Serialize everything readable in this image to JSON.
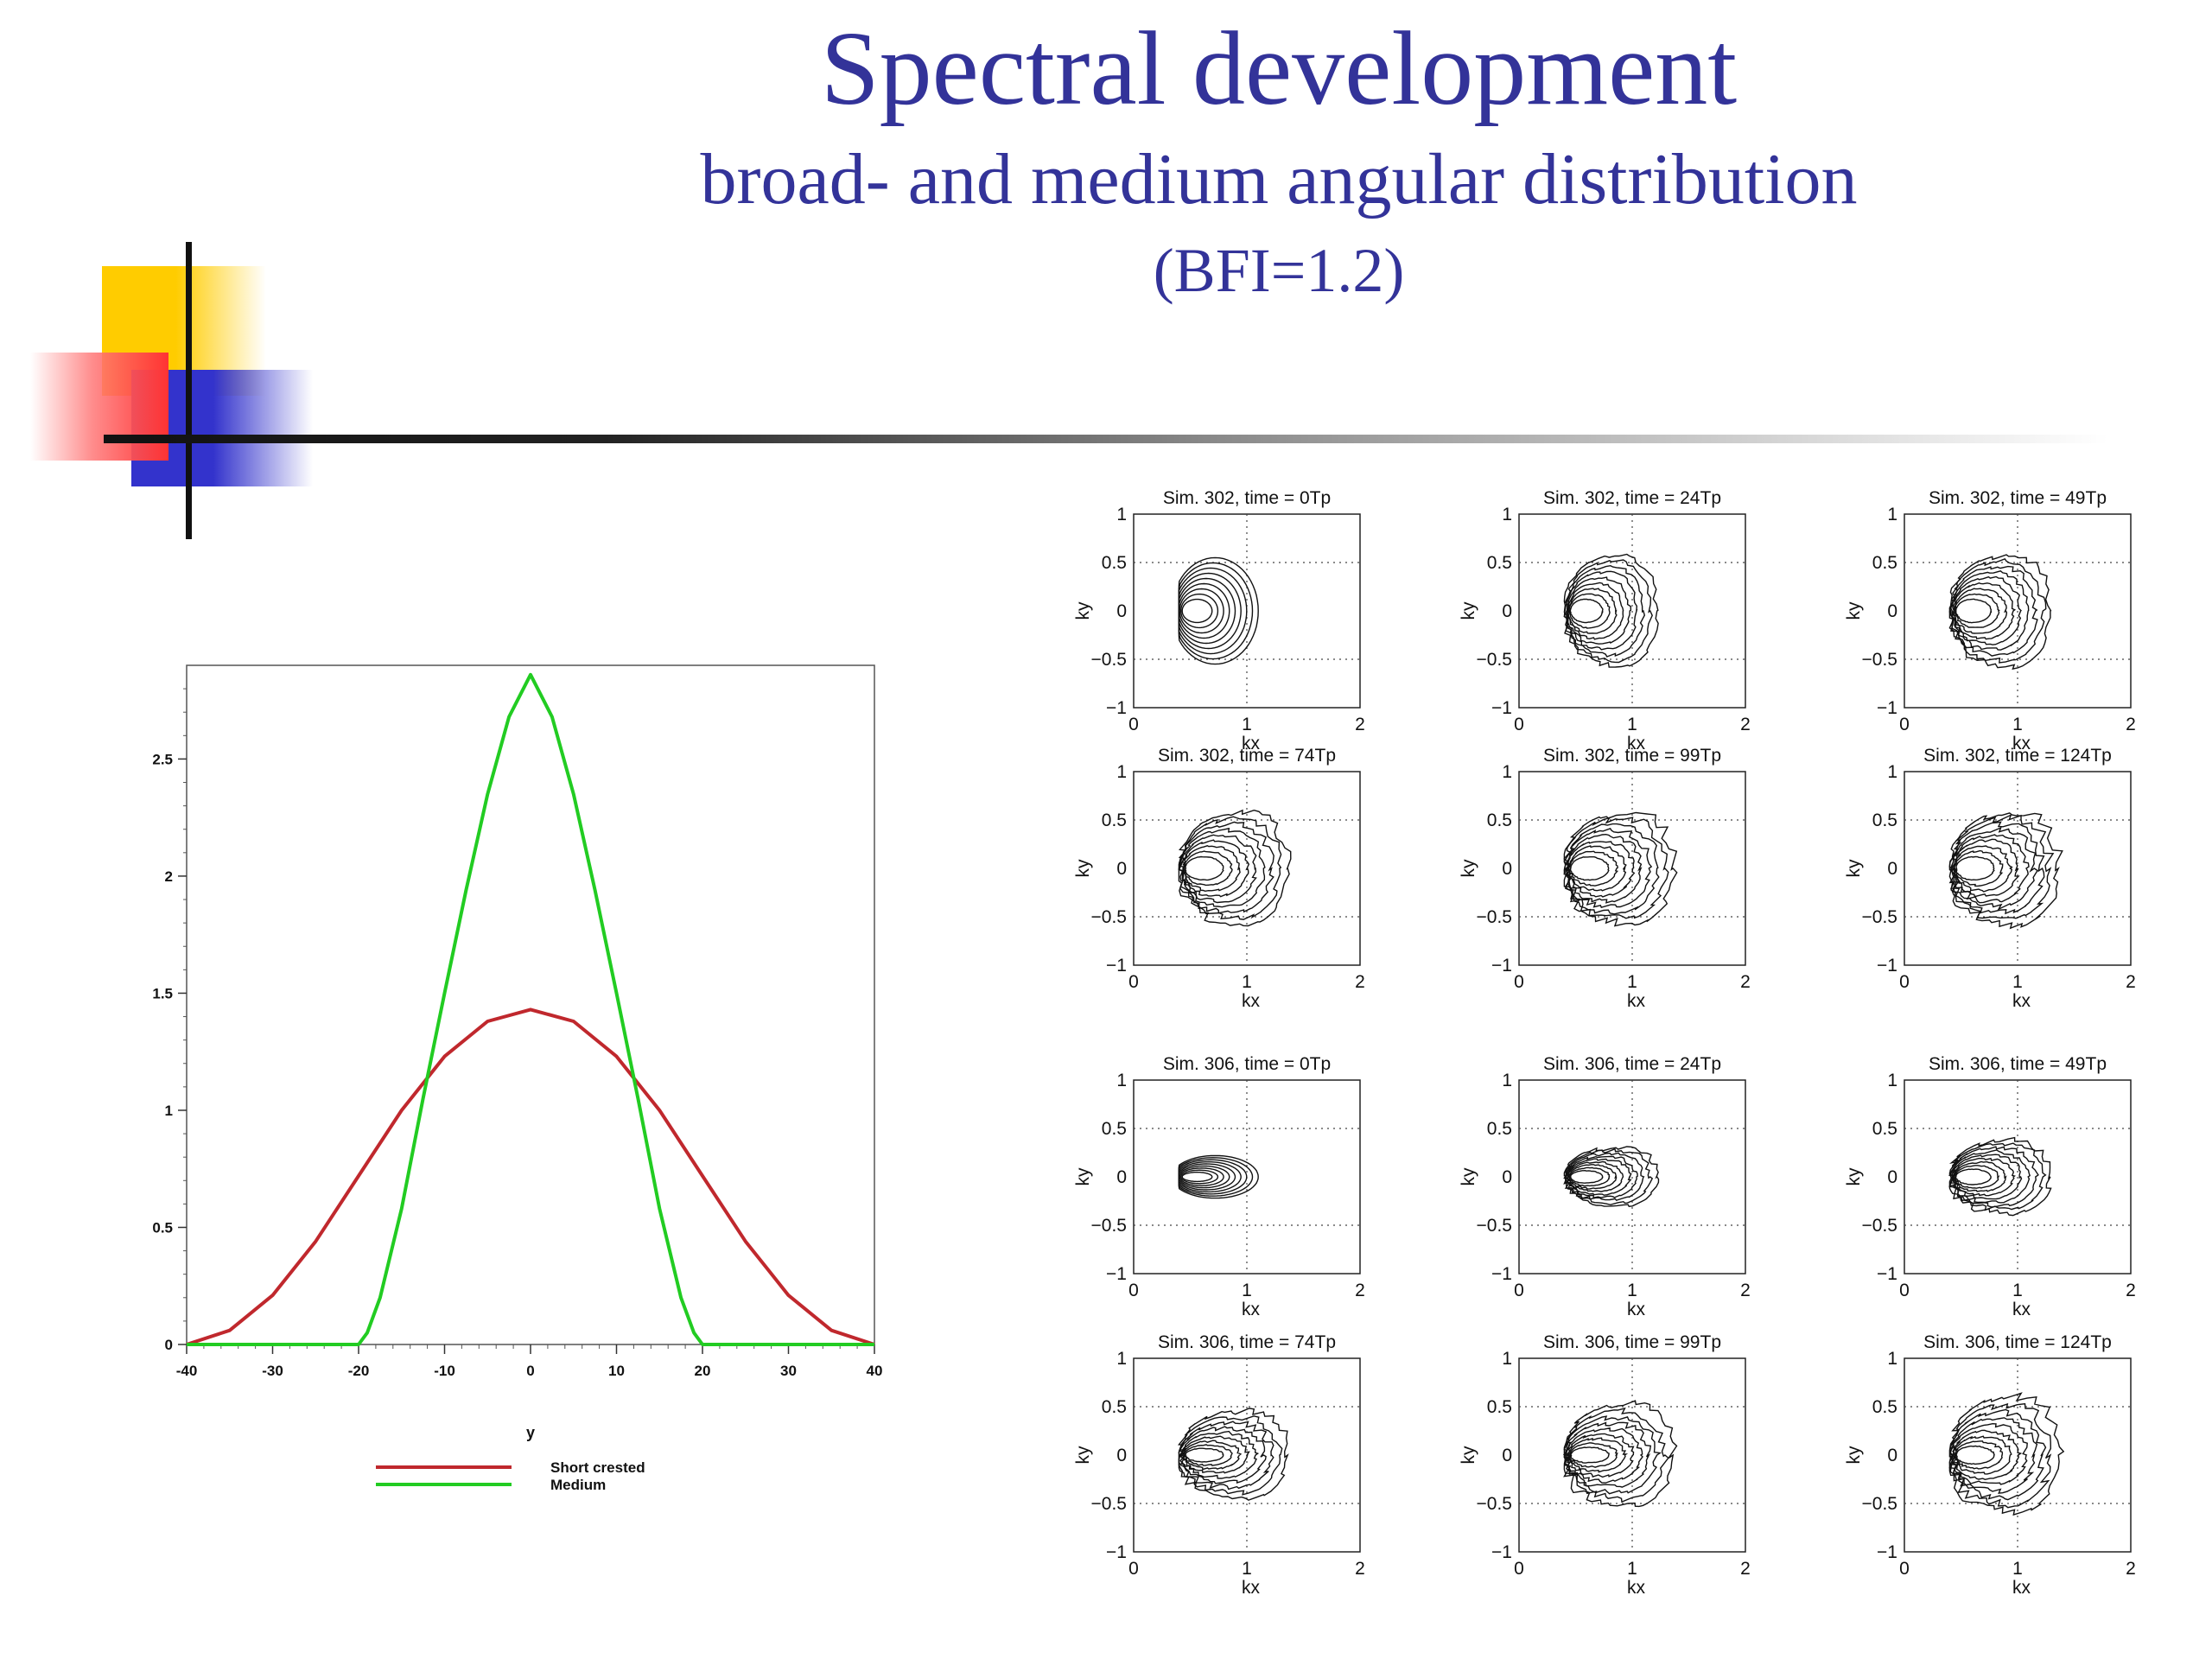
{
  "header": {
    "title": "Spectral development",
    "subtitle": "broad- and medium angular distribution",
    "note": "(BFI=1.2)"
  },
  "chart_data": [
    {
      "type": "line",
      "xlabel": "y",
      "ylabel": "",
      "xlim": [
        -40,
        40
      ],
      "ylim": [
        0,
        2.9
      ],
      "x_ticks": [
        "-40",
        "-30",
        "-20",
        "-10",
        "0",
        "10",
        "20",
        "30",
        "40"
      ],
      "y_ticks": [
        "0",
        "0.5",
        "1",
        "1.5",
        "2",
        "2.5"
      ],
      "legend_position": "bottom",
      "series": [
        {
          "name": "Short crested",
          "color": "#c0282d",
          "x": [
            -40,
            -35,
            -30,
            -25,
            -20,
            -15,
            -10,
            -5,
            0,
            5,
            10,
            15,
            20,
            25,
            30,
            35,
            40
          ],
          "values": [
            0.0,
            0.06,
            0.21,
            0.44,
            0.72,
            1.0,
            1.23,
            1.38,
            1.43,
            1.38,
            1.23,
            1.0,
            0.72,
            0.44,
            0.21,
            0.06,
            0.0
          ]
        },
        {
          "name": "Medium",
          "color": "#22cc22",
          "x": [
            -40,
            -30,
            -20,
            -19,
            -17.5,
            -15,
            -12.5,
            -10,
            -7.5,
            -5,
            -2.5,
            0,
            2.5,
            5,
            7.5,
            10,
            12.5,
            15,
            17.5,
            19,
            20,
            30,
            40
          ],
          "values": [
            0,
            0,
            0,
            0.05,
            0.2,
            0.58,
            1.05,
            1.5,
            1.94,
            2.35,
            2.68,
            2.86,
            2.68,
            2.35,
            1.94,
            1.5,
            1.05,
            0.58,
            0.2,
            0.05,
            0,
            0,
            0
          ]
        }
      ]
    },
    {
      "type": "contour",
      "grid": "3x2",
      "xlabel": "k_x",
      "ylabel": "k_y",
      "xlim": [
        0,
        2
      ],
      "ylim": [
        -1,
        1
      ],
      "x_ticks": [
        "0",
        "1",
        "2"
      ],
      "y_ticks": [
        "1",
        "0.5",
        "0",
        "−0.5",
        "−1"
      ],
      "panels": [
        {
          "title": "Sim. 302, time = 0Tp"
        },
        {
          "title": "Sim. 302, time = 24Tp"
        },
        {
          "title": "Sim. 302, time = 49Tp"
        },
        {
          "title": "Sim. 302, time = 74Tp"
        },
        {
          "title": "Sim. 302, time = 99Tp"
        },
        {
          "title": "Sim. 302, time = 124Tp"
        }
      ]
    },
    {
      "type": "contour",
      "grid": "3x2",
      "xlabel": "k_x",
      "ylabel": "k_y",
      "xlim": [
        0,
        2
      ],
      "ylim": [
        -1,
        1
      ],
      "x_ticks": [
        "0",
        "1",
        "2"
      ],
      "y_ticks": [
        "1",
        "0.5",
        "0",
        "−0.5",
        "−1"
      ],
      "panels": [
        {
          "title": "Sim. 306, time = 0Tp"
        },
        {
          "title": "Sim. 306, time = 24Tp"
        },
        {
          "title": "Sim. 306, time = 49Tp"
        },
        {
          "title": "Sim. 306, time = 74Tp"
        },
        {
          "title": "Sim. 306, time = 99Tp"
        },
        {
          "title": "Sim. 306, time = 124Tp"
        }
      ]
    }
  ]
}
